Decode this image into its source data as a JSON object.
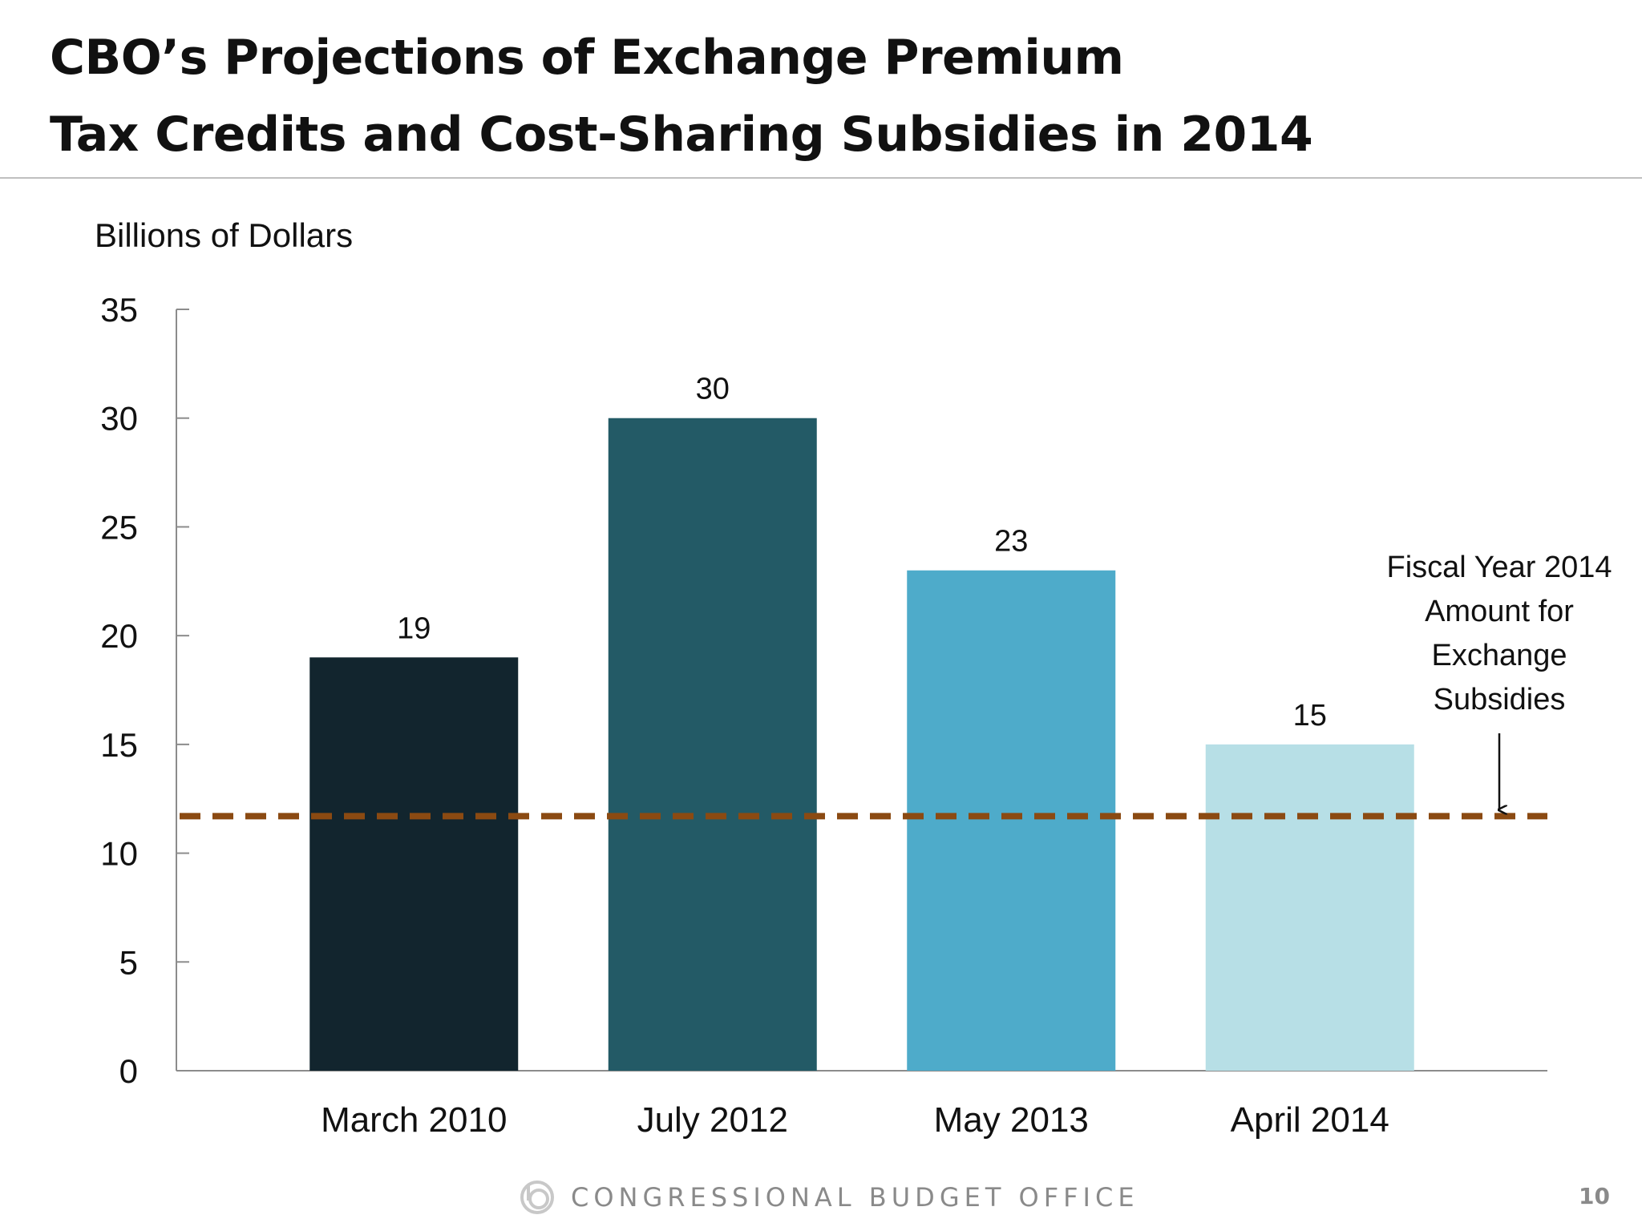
{
  "slide": {
    "title_line1": "CBO’s Projections of Exchange Premium",
    "title_line2": "Tax Credits and Cost-Sharing Subsidies in 2014",
    "footer_org": "CONGRESSIONAL BUDGET OFFICE",
    "page_number": "10"
  },
  "chart_data": {
    "type": "bar",
    "ylabel": "Billions of Dollars",
    "ylim": [
      0,
      35
    ],
    "yticks": [
      0,
      5,
      10,
      15,
      20,
      25,
      30,
      35
    ],
    "categories": [
      "March 2010",
      "July 2012",
      "May 2013",
      "April 2014"
    ],
    "values": [
      19,
      30,
      23,
      15
    ],
    "data_labels": [
      "19",
      "30",
      "23",
      "15"
    ],
    "colors": [
      "#12252e",
      "#235a66",
      "#4eabca",
      "#b7dfe6"
    ],
    "reference_line": {
      "value": 11.7,
      "style": "dashed",
      "color": "#8b4a12",
      "label_lines": [
        "Fiscal Year 2014",
        "Amount for",
        "Exchange",
        "Subsidies"
      ]
    }
  }
}
